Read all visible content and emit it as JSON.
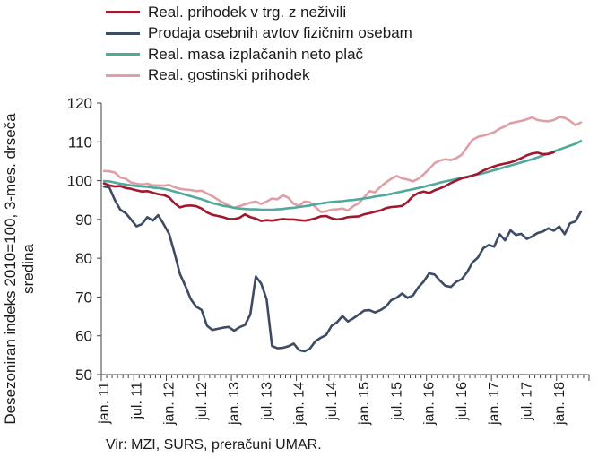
{
  "colors": {
    "real_retail": "#a0192e",
    "car_sales": "#3e4b64",
    "net_wages": "#4fa99c",
    "hospitality": "#dea0a4",
    "axis": "#404040",
    "grid": "#d9d9d9"
  },
  "legend": [
    {
      "name": "Real. prihodek v trg. z neživili",
      "color": "#a0192e"
    },
    {
      "name": "Prodaja osebnih avtov fizičnim osebam",
      "color": "#3e4b64"
    },
    {
      "name": "Real. masa izplačanih neto plač",
      "color": "#4fa99c"
    },
    {
      "name": "Real. gostinski prihodek",
      "color": "#dea0a4"
    }
  ],
  "source": "Vir: MZI, SURS, preračuni UMAR.",
  "chart_data": {
    "type": "line",
    "title": "",
    "xlabel": "",
    "ylabel": "Desezoniran indeks 2010=100, 3-mes. drseča sredina",
    "ylim": [
      50,
      120
    ],
    "yticks": [
      50,
      60,
      70,
      80,
      90,
      100,
      110,
      120
    ],
    "grid": "none",
    "legend_position": "top",
    "x_start": "2011-01",
    "x_end": "2018-06",
    "x_ticks": [
      "jan. 11",
      "jul. 11",
      "jan. 12",
      "jul. 12",
      "jan. 13",
      "jul. 13",
      "jan. 14",
      "jul. 14",
      "jan. 15",
      "jul. 15",
      "jan. 16",
      "jul. 16",
      "jan. 17",
      "jul. 17",
      "jan. 18"
    ],
    "series": [
      {
        "name": "Real. prihodek v trg. z neživili",
        "color": "#a0192e",
        "values": [
          99.3,
          98.8,
          98.5,
          98.6,
          98.1,
          97.9,
          97.5,
          97.2,
          97.3,
          96.9,
          96.5,
          96.3,
          95.7,
          94.2,
          93.1,
          93.5,
          93.6,
          93.4,
          92.8,
          91.8,
          91.2,
          90.9,
          90.6,
          90.1,
          90.1,
          90.4,
          91.3,
          90.6,
          90.2,
          89.6,
          89.8,
          89.7,
          89.9,
          90.1,
          90.0,
          90.0,
          89.8,
          89.7,
          89.9,
          90.3,
          90.8,
          90.9,
          90.3,
          90.0,
          90.2,
          90.6,
          90.7,
          90.8,
          91.3,
          91.6,
          92.0,
          92.3,
          92.9,
          93.2,
          93.3,
          93.5,
          94.5,
          96.0,
          96.8,
          97.2,
          96.8,
          97.5,
          98.0,
          98.6,
          99.4,
          100.0,
          100.6,
          100.9,
          101.3,
          101.8,
          102.6,
          103.2,
          103.7,
          104.1,
          104.4,
          104.7,
          105.2,
          105.8,
          106.5,
          107.0,
          107.2,
          106.8,
          106.9,
          107.3
        ]
      },
      {
        "name": "Prodaja osebnih avtov fizičnim osebam",
        "color": "#3e4b64",
        "values": [
          98.5,
          98.2,
          95.0,
          92.5,
          91.6,
          90.0,
          88.2,
          88.8,
          90.6,
          89.7,
          91.1,
          88.8,
          86.3,
          81.4,
          76.0,
          72.9,
          69.5,
          67.5,
          66.7,
          62.6,
          61.5,
          61.8,
          62.1,
          62.3,
          61.3,
          62.2,
          62.8,
          65.5,
          75.3,
          73.5,
          69.4,
          57.4,
          56.8,
          56.9,
          57.3,
          58.0,
          56.3,
          56.0,
          56.7,
          58.6,
          59.5,
          60.2,
          62.6,
          63.5,
          65.1,
          63.7,
          64.5,
          65.5,
          66.5,
          66.6,
          66.0,
          66.6,
          67.5,
          69.2,
          69.8,
          70.9,
          69.8,
          70.4,
          72.5,
          74.0,
          76.1,
          75.8,
          74.2,
          72.9,
          72.6,
          73.9,
          74.6,
          76.4,
          78.9,
          80.2,
          82.6,
          83.4,
          83.0,
          86.2,
          84.6,
          87.2,
          86.0,
          86.3,
          85.0,
          85.6,
          86.5,
          86.9,
          87.7,
          87.1,
          88.2,
          86.2,
          89.0,
          89.5,
          92.0
        ]
      },
      {
        "name": "Real. masa izplačanih neto plač",
        "color": "#4fa99c",
        "values": [
          99.9,
          99.8,
          99.5,
          99.2,
          99.0,
          98.8,
          98.6,
          98.5,
          98.4,
          98.2,
          98.1,
          97.9,
          97.6,
          97.2,
          96.8,
          96.4,
          96.0,
          95.6,
          95.2,
          94.7,
          94.2,
          93.9,
          93.5,
          93.3,
          93.0,
          92.8,
          92.7,
          92.6,
          92.6,
          92.5,
          92.5,
          92.5,
          92.6,
          92.7,
          92.9,
          93.0,
          93.2,
          93.4,
          93.6,
          93.9,
          94.1,
          94.3,
          94.5,
          94.6,
          94.7,
          94.9,
          95.0,
          95.2,
          95.4,
          95.6,
          95.9,
          96.1,
          96.3,
          96.6,
          96.9,
          97.2,
          97.5,
          97.8,
          98.1,
          98.4,
          98.8,
          99.1,
          99.5,
          99.8,
          100.1,
          100.4,
          100.7,
          101.0,
          101.3,
          101.6,
          101.9,
          102.3,
          102.7,
          103.1,
          103.5,
          103.9,
          104.3,
          104.7,
          105.1,
          105.5,
          106.0,
          106.5,
          107.0,
          107.5,
          108.0,
          108.5,
          109.0,
          109.5,
          110.2
        ]
      },
      {
        "name": "Real. gostinski prihodek",
        "color": "#dea0a4",
        "values": [
          102.5,
          102.4,
          102.1,
          100.8,
          100.5,
          99.5,
          99.2,
          99.0,
          99.2,
          98.8,
          98.8,
          98.7,
          98.9,
          98.3,
          97.9,
          97.7,
          97.6,
          97.3,
          97.4,
          96.7,
          96.0,
          95.1,
          94.3,
          93.6,
          93.0,
          93.4,
          93.9,
          94.3,
          94.6,
          94.0,
          94.6,
          95.4,
          95.2,
          96.2,
          95.6,
          94.0,
          93.5,
          94.6,
          94.4,
          93.2,
          91.9,
          92.1,
          92.5,
          92.6,
          92.8,
          92.3,
          93.4,
          94.2,
          95.7,
          97.3,
          97.0,
          98.4,
          99.5,
          100.5,
          101.2,
          100.6,
          100.3,
          99.8,
          100.5,
          101.6,
          103.0,
          104.5,
          105.2,
          105.5,
          105.3,
          105.8,
          106.7,
          108.6,
          110.5,
          111.3,
          111.6,
          112.0,
          112.5,
          113.4,
          114.0,
          114.8,
          115.1,
          115.4,
          115.8,
          116.3,
          115.6,
          115.4,
          115.3,
          115.6,
          116.4,
          116.2,
          115.4,
          114.3,
          115.0
        ]
      }
    ]
  }
}
